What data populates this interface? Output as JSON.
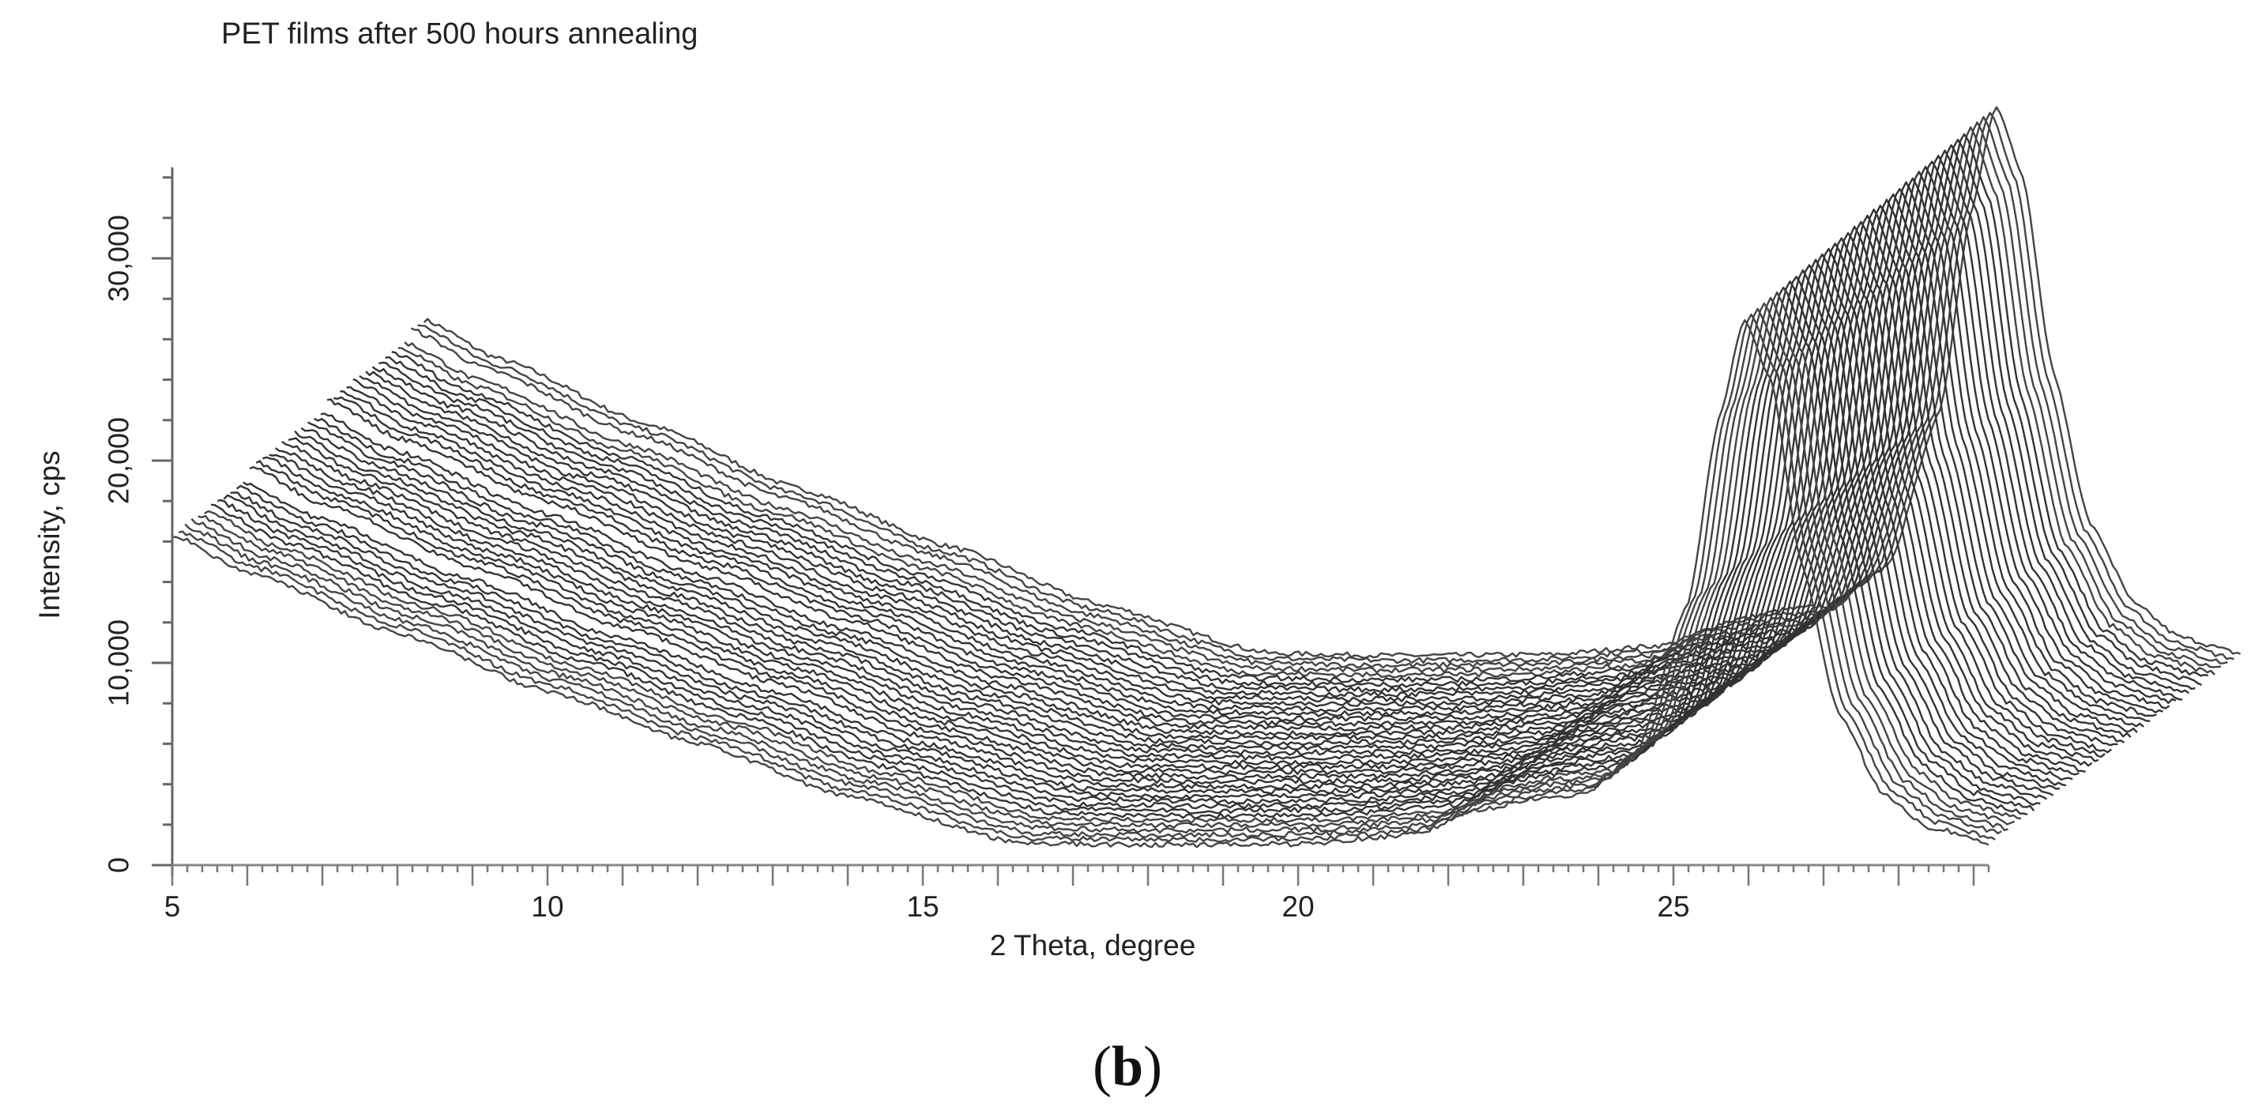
{
  "figure": {
    "title": "PET films after 500 hours annealing",
    "xlabel": "2 Theta, degree",
    "ylabel": "Intensity, cps",
    "caption_open": "(",
    "caption_letter": "b",
    "caption_close": ")"
  },
  "chart_data": {
    "type": "line",
    "subtype": "waterfall (offset stacked XRD patterns)",
    "title": "PET films after 500 hours annealing",
    "xlabel": "2 Theta, degree",
    "ylabel": "Intensity, cps",
    "xlim": [
      5,
      29.2
    ],
    "ylim": [
      0,
      34500
    ],
    "x_ticks": [
      5,
      10,
      15,
      20,
      25
    ],
    "x_tick_labels": [
      "5",
      "10",
      "15",
      "20",
      "25"
    ],
    "x_minor_step": 0.2,
    "y_ticks": [
      0,
      10000,
      20000,
      30000
    ],
    "y_tick_labels": [
      "0",
      "10,000",
      "20,000",
      "30,000"
    ],
    "y_minor_step": 2000,
    "grid": false,
    "legend": null,
    "trace_count": 40,
    "trace_offset_per_step": {
      "dx_degree": 0.086,
      "dy_cps": 240
    },
    "base_profile": {
      "description": "Lowest (first) trace, before offset",
      "x": [
        5.0,
        6.0,
        8.0,
        10.0,
        12.0,
        14.0,
        16.3,
        18.0,
        20.0,
        21.5,
        22.5,
        23.2,
        23.8,
        24.5,
        25.2,
        25.6,
        25.94,
        26.3,
        26.7,
        27.2,
        27.8,
        28.4,
        29.2
      ],
      "y": [
        16300,
        14500,
        11500,
        8600,
        6000,
        3400,
        1100,
        1000,
        1050,
        1500,
        2800,
        3300,
        3500,
        5500,
        13000,
        22000,
        27000,
        24000,
        15000,
        7500,
        3500,
        1900,
        1100
      ]
    },
    "start_intensity_steps": [
      {
        "from_trace": 0,
        "start_cps": 16300
      },
      {
        "from_trace": 12,
        "start_cps": 16800
      },
      {
        "from_trace": 24,
        "start_cps": 17200
      },
      {
        "from_trace": 37,
        "start_cps": 17600
      }
    ],
    "peak_growth": {
      "description": "Main peak shifts right and grows across traces",
      "first_peak": {
        "x": 25.94,
        "y": 27000
      },
      "last_peak_apparent": {
        "x": 29.1,
        "y": 37000
      },
      "peak_extra_cps_last": 1200
    },
    "noise_cps": 250
  }
}
